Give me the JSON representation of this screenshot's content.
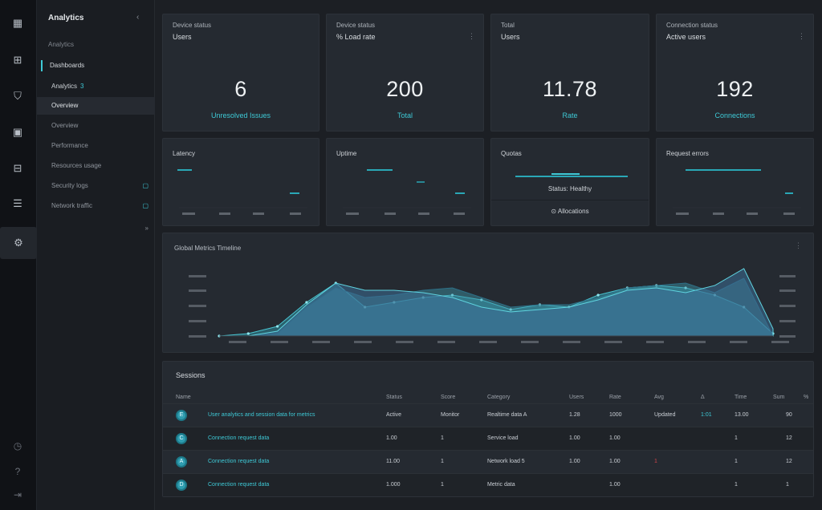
{
  "rail": {
    "icons": [
      "dashboard-icon",
      "grid-icon",
      "shield-icon",
      "lock-icon",
      "chart-icon",
      "server-icon",
      "settings-icon"
    ],
    "bottom_icons": [
      "clock-icon",
      "help-icon",
      "logout-icon"
    ]
  },
  "sidebar": {
    "brand": "Analytics",
    "collapse_glyph": "‹",
    "section": "Analytics",
    "parent": "Dashboards",
    "sub": "Analytics",
    "sub_badge": "3",
    "items": [
      {
        "label": "Overview",
        "badge": ""
      },
      {
        "label": "Overview",
        "badge": ""
      },
      {
        "label": "Performance",
        "badge": ""
      },
      {
        "label": "Resources usage",
        "badge": ""
      },
      {
        "label": "Security logs",
        "badge": "▢"
      },
      {
        "label": "Network traffic",
        "badge": "▢"
      },
      {
        "label": "",
        "badge": "»"
      }
    ]
  },
  "stats": [
    {
      "title": "Device status",
      "sub": "Users",
      "menu": "",
      "value": "6",
      "caption": "Unresolved Issues"
    },
    {
      "title": "Device status",
      "sub": "% Load rate",
      "menu": "⋮",
      "value": "200",
      "caption": "Total"
    },
    {
      "title": "Total",
      "sub": "Users",
      "menu": "",
      "value": "11.78",
      "caption": "Rate"
    },
    {
      "title": "Connection status",
      "sub": "Active users",
      "menu": "⋮",
      "value": "192",
      "caption": "Connections"
    }
  ],
  "minis": [
    {
      "title": "Latency"
    },
    {
      "title": "Uptime"
    },
    {
      "title": "Quotas",
      "row1": "Status: Healthy",
      "row2": "⊙ Allocations"
    },
    {
      "title": "Request errors"
    }
  ],
  "main_chart_title": "Global Metrics Timeline",
  "main_chart_menu": "⋮",
  "chart_data": {
    "type": "area",
    "title": "Global Metrics Timeline",
    "series": [
      {
        "values": [
          0,
          1,
          4,
          14,
          22,
          12,
          14,
          16,
          17,
          15,
          11,
          13,
          12,
          17,
          20,
          21,
          20,
          17,
          12,
          1
        ]
      },
      {
        "values": [
          0,
          0,
          1,
          12,
          20,
          16,
          17,
          19,
          20,
          16,
          12,
          13,
          13,
          16,
          20,
          21,
          22,
          18,
          24,
          0
        ]
      },
      {
        "values": [
          0,
          0,
          2,
          13,
          22,
          19,
          19,
          18,
          16,
          12,
          10,
          11,
          12,
          15,
          19,
          20,
          18,
          21,
          28,
          3
        ]
      }
    ]
  },
  "table": {
    "title": "Sessions",
    "headers": [
      "Name",
      "Status",
      "Score",
      "Category",
      "Users",
      "Rate",
      "Avg",
      "Δ",
      "Time",
      "Sum",
      "%"
    ],
    "rows": [
      {
        "icon": "E",
        "name": "User analytics and session data for metrics",
        "c1": "Active",
        "c2": "Monitor",
        "c3": "Realtime data A",
        "c4": "1.28",
        "c5": "1000",
        "c6": "Updated",
        "c7": "1:01",
        "c8": "13.00",
        "c9": "90",
        "red": false
      },
      {
        "icon": "C",
        "name": "Connection request data",
        "c1": "1.00",
        "c2": "1",
        "c3": "Service load",
        "c4": "1.00",
        "c5": "1.00",
        "c6": "",
        "c7": "",
        "c8": "1",
        "c9": "12",
        "red": false
      },
      {
        "icon": "A",
        "name": "Connection request data",
        "c1": "11.00",
        "c2": "1",
        "c3": "Network load 5",
        "c4": "1.00",
        "c5": "1.00",
        "c6": "1",
        "c7": "",
        "c8": "1",
        "c9": "12",
        "red": true
      },
      {
        "icon": "D",
        "name": "Connection request data",
        "c1": "1.000",
        "c2": "1",
        "c3": "Metric data",
        "c4": "",
        "c5": "1.00",
        "c6": "",
        "c7": "",
        "c8": "1",
        "c9": "1",
        "red": false
      }
    ]
  },
  "colors": {
    "accent": "#3ec9d6",
    "area": "#2f8e9e",
    "alert": "#d0434a"
  }
}
